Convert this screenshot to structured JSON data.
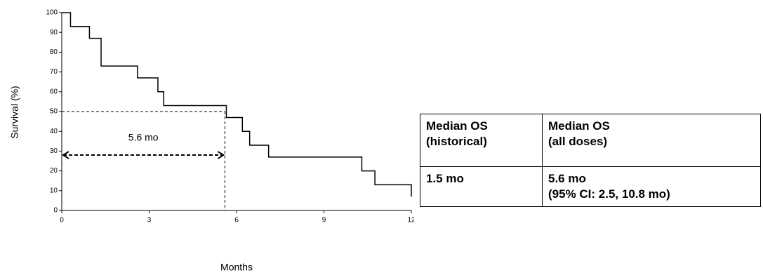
{
  "chart_data": {
    "type": "step",
    "xlabel": "Months",
    "ylabel": "Survival (%)",
    "x": [
      0,
      0.3,
      0.95,
      1.35,
      2.6,
      3.3,
      3.5,
      5.65,
      6.2,
      6.45,
      7.1,
      10.3,
      10.75,
      12
    ],
    "values": [
      100,
      93,
      87,
      73,
      67,
      60,
      53,
      47,
      40,
      33,
      27,
      20,
      13,
      7
    ],
    "color": "#000000",
    "xlim": [
      0,
      12
    ],
    "xticks": [
      0,
      3,
      6,
      9,
      12
    ],
    "ylim": [
      0,
      100
    ],
    "yticks": [
      0,
      10,
      20,
      30,
      40,
      50,
      60,
      70,
      80,
      90,
      100
    ],
    "annotation": {
      "text": "5.6 mo",
      "x": 5.6,
      "y": 50,
      "arrow_y": 28
    }
  },
  "table": {
    "header": [
      "Median OS\n(historical)",
      "Median OS\n(all doses)"
    ],
    "rows": [
      [
        "1.5 mo",
        "5.6 mo\n(95% CI: 2.5, 10.8 mo)"
      ]
    ]
  }
}
